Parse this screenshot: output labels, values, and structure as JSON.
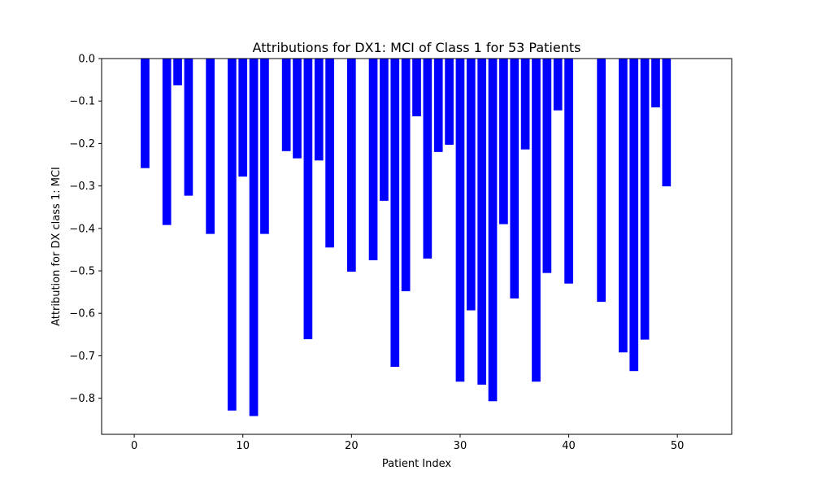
{
  "chart_data": {
    "type": "bar",
    "title": "Attributions for DX1: MCI of Class 1 for 53 Patients",
    "xlabel": "Patient Index",
    "ylabel": "Attribution for DX class 1: MCI",
    "xlim": [
      -3,
      55
    ],
    "ylim": [
      -0.885,
      0.0
    ],
    "x_ticks": [
      0,
      10,
      20,
      30,
      40,
      50
    ],
    "x_tick_labels": [
      "0",
      "10",
      "20",
      "30",
      "40",
      "50"
    ],
    "y_ticks": [
      0.0,
      -0.1,
      -0.2,
      -0.3,
      -0.4,
      -0.5,
      -0.6,
      -0.7,
      -0.8
    ],
    "y_tick_labels": [
      "0.0",
      "−0.1",
      "−0.2",
      "−0.3",
      "−0.4",
      "−0.5",
      "−0.6",
      "−0.7",
      "−0.8"
    ],
    "bar_color": "#0000ff",
    "bar_width": 0.8,
    "grid": false,
    "x": [
      1,
      3,
      4,
      5,
      7,
      9,
      10,
      11,
      12,
      14,
      15,
      16,
      17,
      18,
      20,
      22,
      23,
      24,
      25,
      26,
      27,
      28,
      29,
      30,
      31,
      32,
      33,
      34,
      35,
      36,
      37,
      38,
      39,
      40,
      43,
      45,
      46,
      47,
      48,
      49
    ],
    "values": [
      -0.258,
      -0.392,
      -0.063,
      -0.323,
      -0.413,
      -0.829,
      -0.278,
      -0.842,
      -0.413,
      -0.218,
      -0.235,
      -0.661,
      -0.24,
      -0.445,
      -0.502,
      -0.475,
      -0.335,
      -0.726,
      -0.548,
      -0.136,
      -0.471,
      -0.22,
      -0.203,
      -0.761,
      -0.593,
      -0.768,
      -0.807,
      -0.39,
      -0.565,
      -0.214,
      -0.761,
      -0.505,
      -0.122,
      -0.53,
      -0.573,
      -0.692,
      -0.736,
      -0.662,
      -0.115,
      -0.301
    ]
  }
}
